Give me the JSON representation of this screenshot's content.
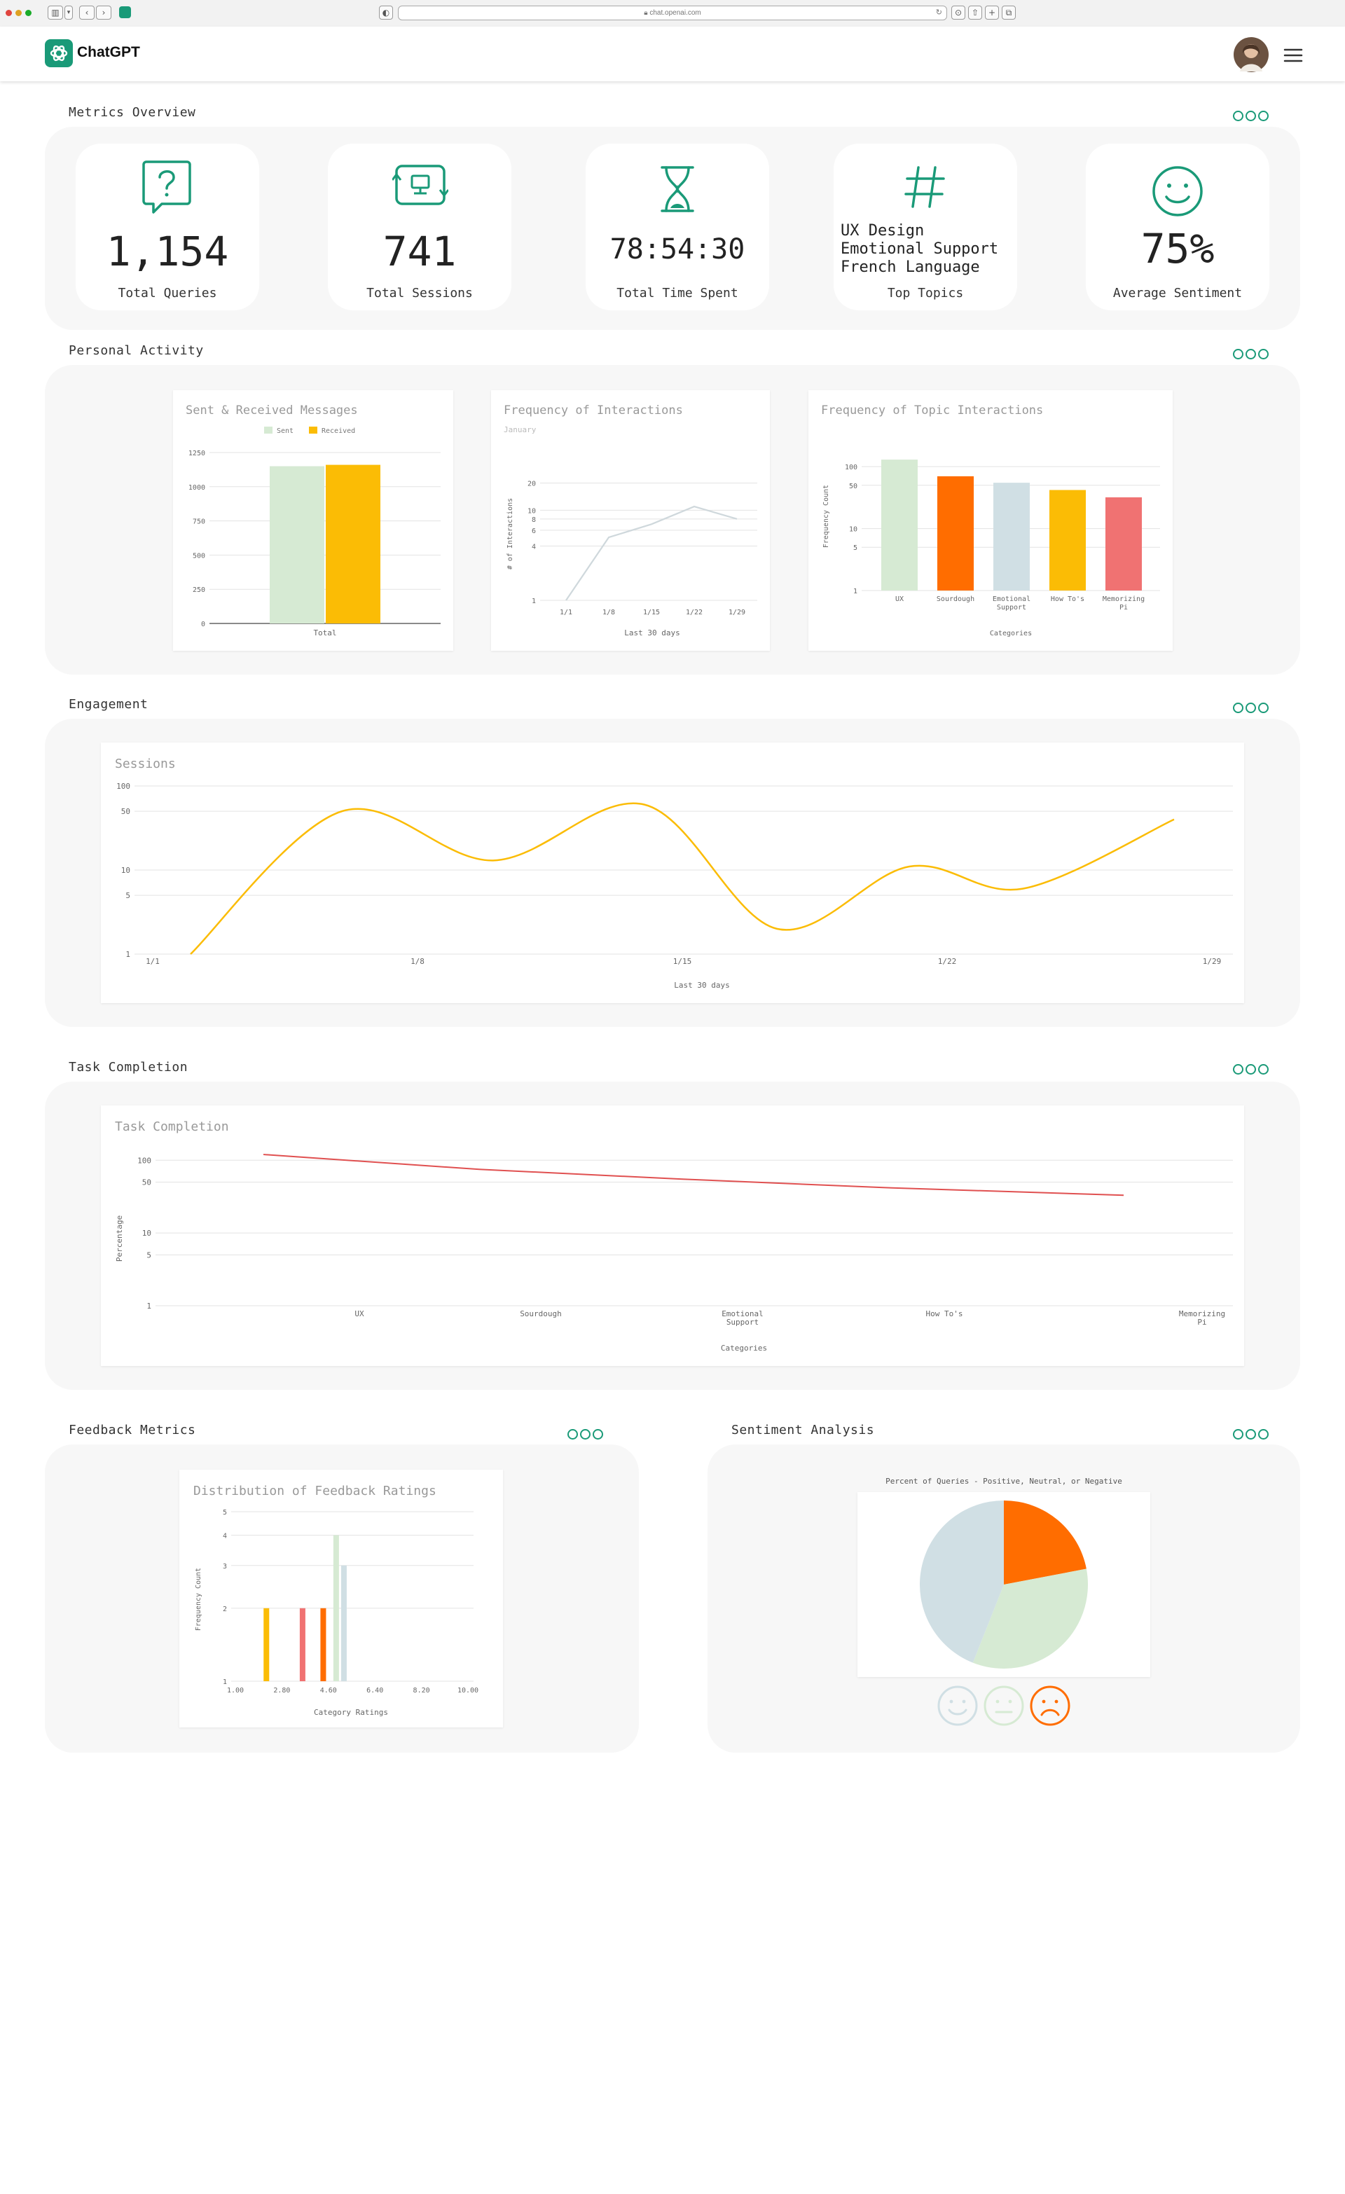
{
  "browser": {
    "url": "chat.openai.com"
  },
  "app": {
    "name": "ChatGPT"
  },
  "metrics": {
    "title": "Metrics Overview",
    "cards": [
      {
        "icon": "question-bubble-icon",
        "value": "1,154",
        "label": "Total Queries"
      },
      {
        "icon": "session-monitor-icon",
        "value": "741",
        "label": "Total Sessions"
      },
      {
        "icon": "hourglass-icon",
        "value": "78:54:30",
        "label": "Total Time Spent"
      },
      {
        "icon": "hashtag-icon",
        "topics": [
          "UX Design",
          "Emotional Support",
          "French Language"
        ],
        "label": "Top Topics"
      },
      {
        "icon": "smiley-icon",
        "value": "75%",
        "label": "Average Sentiment"
      }
    ]
  },
  "personal": {
    "title": "Personal Activity"
  },
  "engagement": {
    "title": "Engagement"
  },
  "task": {
    "title": "Task Completion"
  },
  "feedback": {
    "title": "Feedback Metrics"
  },
  "sentiment": {
    "title": "Sentiment Analysis"
  },
  "colors": {
    "accent": "#1a9a78",
    "sent": "#d6ead3",
    "received": "#fbbc05",
    "orange": "#ff6d00",
    "blue_grey": "#d0dfe4",
    "coral": "#f07272"
  },
  "chart_data": [
    {
      "id": "sent-received",
      "type": "bar",
      "title": "Sent & Received Messages",
      "categories": [
        "Total"
      ],
      "series": [
        {
          "name": "Sent",
          "values": [
            1150
          ]
        },
        {
          "name": "Received",
          "values": [
            1160
          ]
        }
      ],
      "yticks": [
        "0",
        "250",
        "500",
        "750",
        "1000",
        "1250"
      ],
      "ylim": [
        0,
        1250
      ],
      "legend": "top-center"
    },
    {
      "id": "frequency-interactions",
      "type": "line",
      "title": "Frequency of Interactions",
      "subtitle": "January",
      "ylabel": "# of Interactions",
      "xlabel": "Last 30 days",
      "xticks": [
        "1/1",
        "1/8",
        "1/15",
        "1/22",
        "1/29"
      ],
      "yticks": [
        "1",
        "4",
        "6",
        "8",
        "10",
        "20"
      ],
      "yscale": "log",
      "x": [
        "1/1",
        "1/8",
        "1/15",
        "1/22",
        "1/29"
      ],
      "y": [
        1,
        5,
        7,
        11,
        8
      ]
    },
    {
      "id": "topic-interactions",
      "type": "bar",
      "title": "Frequency of Topic Interactions",
      "ylabel": "Frequency Count",
      "xlabel": "Categories",
      "yscale": "log",
      "categories": [
        "UX",
        "Sourdough",
        "Emotional Support",
        "How To's",
        "Memorizing Pi"
      ],
      "values": [
        130,
        70,
        55,
        42,
        32
      ],
      "yticks": [
        "1",
        "5",
        "10",
        "50",
        "100"
      ]
    },
    {
      "id": "sessions",
      "type": "line",
      "title": "Sessions",
      "xlabel": "Last 30 days",
      "yscale": "log",
      "xticks": [
        "1/1",
        "1/8",
        "1/15",
        "1/22",
        "1/29"
      ],
      "yticks": [
        "1",
        "5",
        "10",
        "50",
        "100"
      ],
      "x": [
        2,
        6,
        10,
        14,
        17.5,
        21,
        24,
        28
      ],
      "y": [
        1,
        50,
        13,
        60,
        2,
        11,
        6,
        40
      ]
    },
    {
      "id": "task-completion",
      "type": "line",
      "title": "Task Completion",
      "ylabel": "Percentage",
      "xlabel": "Categories",
      "yscale": "log",
      "categories": [
        "UX",
        "Sourdough",
        "Emotional Support",
        "How To's",
        "Memorizing Pi"
      ],
      "yticks": [
        "1",
        "5",
        "10",
        "50",
        "100"
      ],
      "y": [
        120,
        75,
        55,
        42,
        33
      ]
    },
    {
      "id": "feedback-ratings",
      "type": "bar",
      "title": "Distribution of Feedback Ratings",
      "ylabel": "Frequency Count",
      "xlabel": "Category Ratings",
      "xticks": [
        "1.00",
        "2.80",
        "4.60",
        "6.40",
        "8.20",
        "10.00"
      ],
      "yticks": [
        "1",
        "2",
        "3",
        "4",
        "5"
      ],
      "xlim": [
        1,
        10
      ],
      "bars": [
        {
          "x": 2.2,
          "y": 2,
          "color": "#fbbc05"
        },
        {
          "x": 3.6,
          "y": 2,
          "color": "#f07272"
        },
        {
          "x": 4.4,
          "y": 2,
          "color": "#ff6d00"
        },
        {
          "x": 4.9,
          "y": 4,
          "color": "#d6ead3"
        },
        {
          "x": 5.2,
          "y": 3,
          "color": "#d0dfe4"
        }
      ]
    },
    {
      "id": "sentiment-pie",
      "type": "pie",
      "title": "Percent of Queries - Positive, Neutral, or Negative",
      "slices": [
        {
          "name": "Negative",
          "value": 22,
          "color": "#ff6d00"
        },
        {
          "name": "Positive",
          "value": 34,
          "color": "#d6ead3"
        },
        {
          "name": "Neutral",
          "value": 44,
          "color": "#d0dfe4"
        }
      ]
    }
  ]
}
